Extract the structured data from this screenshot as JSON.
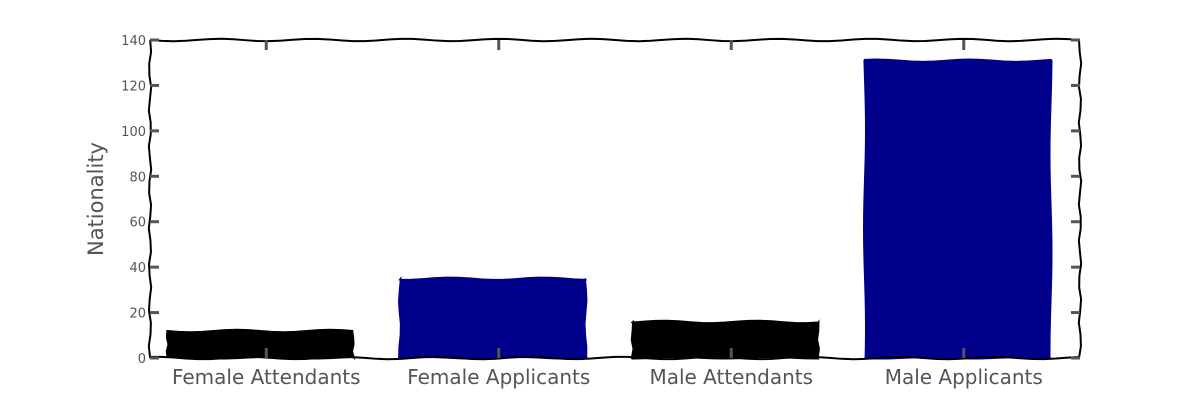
{
  "chart_data": {
    "type": "bar",
    "categories": [
      "Female Attendants",
      "Female Applicants",
      "Male Attendants",
      "Male Applicants"
    ],
    "values": [
      12,
      35,
      16,
      131
    ],
    "colors": [
      "#000000",
      "#00008b",
      "#000000",
      "#00008b"
    ],
    "ylabel": "Nationality",
    "xlabel": "",
    "ylim": [
      0,
      140
    ],
    "yticks": [
      0,
      20,
      40,
      60,
      80,
      100,
      120,
      140
    ],
    "style": "xkcd",
    "grid": false
  }
}
